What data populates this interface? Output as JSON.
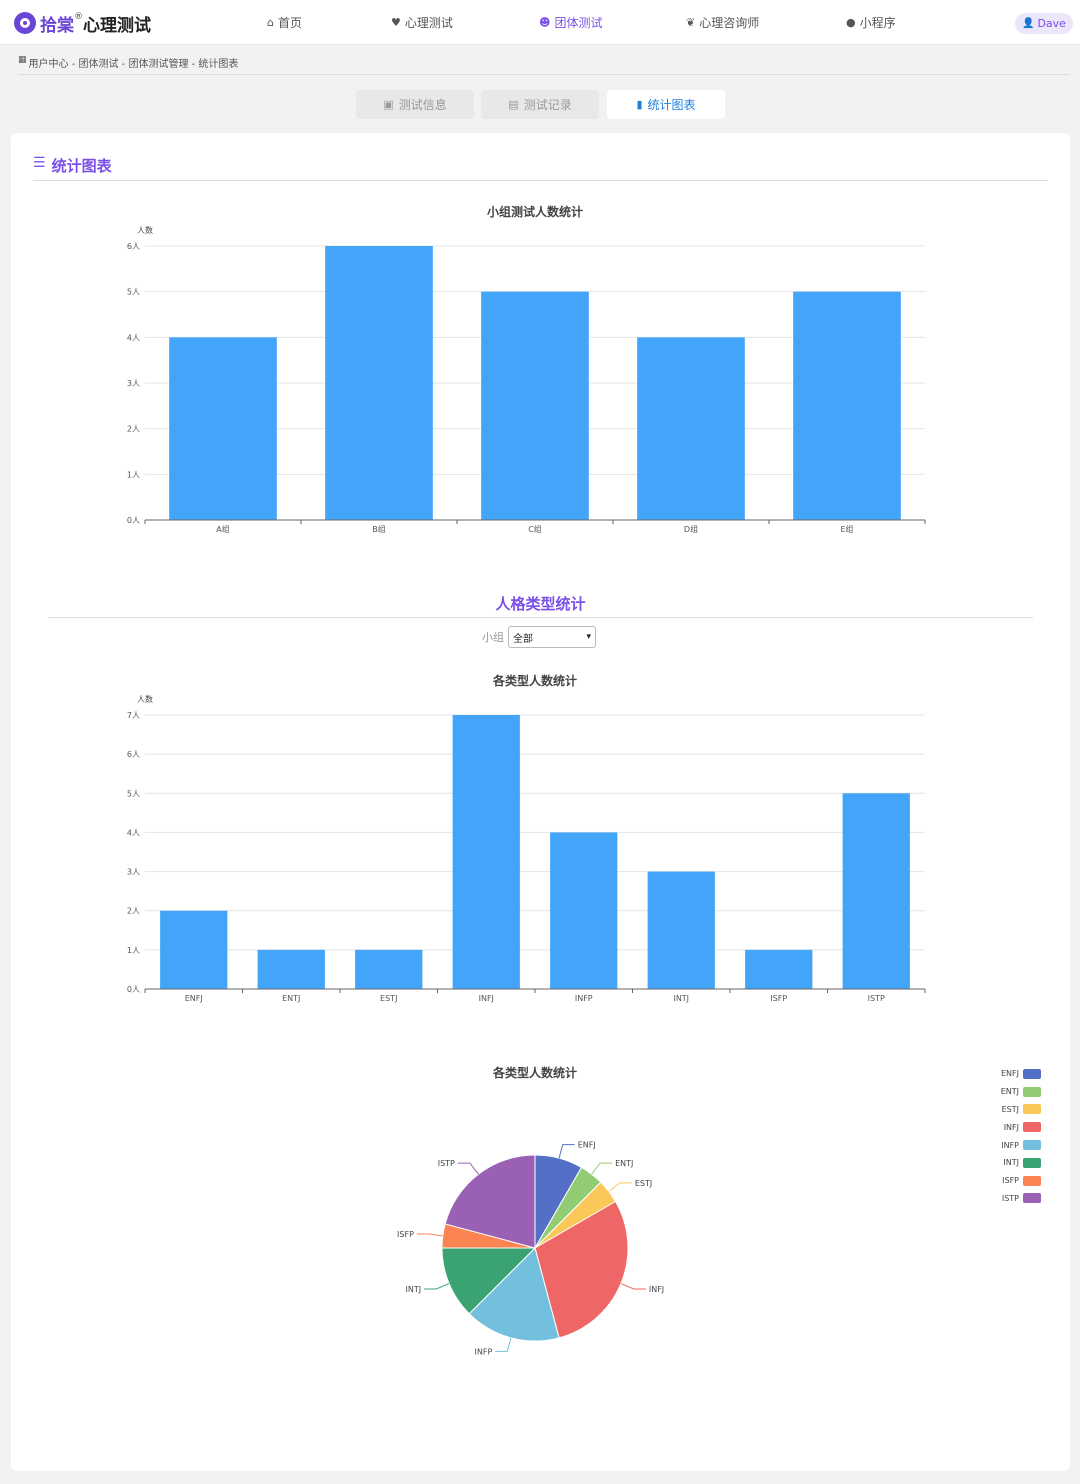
{
  "header": {
    "logo_brand": "拾棠",
    "logo_reg": "®",
    "logo_text": "心理测试",
    "nav": [
      {
        "label": "首页",
        "icon": "home-icon",
        "glyph": "⌂",
        "active": false
      },
      {
        "label": "心理测试",
        "icon": "heart-icon",
        "glyph": "♥",
        "active": false
      },
      {
        "label": "团体测试",
        "icon": "group-icon",
        "glyph": "☻",
        "active": true
      },
      {
        "label": "心理咨询师",
        "icon": "consultant-icon",
        "glyph": "❦",
        "active": false
      },
      {
        "label": "小程序",
        "icon": "mini-program-icon",
        "glyph": "●",
        "active": false
      }
    ],
    "user": "Dave"
  },
  "breadcrumb": "用户中心 - 团体测试 - 团体测试管理 - 统计图表",
  "tabs": [
    {
      "label": "测试信息",
      "icon": "info-icon",
      "glyph": "▣",
      "active": false
    },
    {
      "label": "测试记录",
      "icon": "record-icon",
      "glyph": "▤",
      "active": false
    },
    {
      "label": "统计图表",
      "icon": "bar-chart-icon",
      "glyph": "▮",
      "active": true
    }
  ],
  "section_title": "统计图表",
  "personality_section_title": "人格类型统计",
  "filter": {
    "label": "小组",
    "value": "全部"
  },
  "colors": {
    "accent": "#7b50e8",
    "bar": "#42a5fa",
    "tab_active": "#1f7fdc"
  },
  "chart_data": [
    {
      "type": "bar",
      "title": "小组测试人数统计",
      "ylabel": "人数",
      "categories": [
        "A组",
        "B组",
        "C组",
        "D组",
        "E组"
      ],
      "values": [
        4,
        6,
        5,
        4,
        5
      ],
      "ylim": [
        0,
        6
      ],
      "yticks": [
        "0人",
        "1人",
        "2人",
        "3人",
        "4人",
        "5人",
        "6人"
      ],
      "grid": true
    },
    {
      "type": "bar",
      "title": "各类型人数统计",
      "ylabel": "人数",
      "categories": [
        "ENFJ",
        "ENTJ",
        "ESTJ",
        "INFJ",
        "INFP",
        "INTJ",
        "ISFP",
        "ISTP"
      ],
      "values": [
        2,
        1,
        1,
        7,
        4,
        3,
        1,
        5
      ],
      "ylim": [
        0,
        7
      ],
      "yticks": [
        "0人",
        "1人",
        "2人",
        "3人",
        "4人",
        "5人",
        "6人",
        "7人"
      ],
      "grid": true
    },
    {
      "type": "pie",
      "title": "各类型人数统计",
      "legend": "top-right",
      "slices": [
        {
          "label": "ENFJ",
          "value": 2,
          "color": "#5470c6"
        },
        {
          "label": "ENTJ",
          "value": 1,
          "color": "#91cc75"
        },
        {
          "label": "ESTJ",
          "value": 1,
          "color": "#fac858"
        },
        {
          "label": "INFJ",
          "value": 7,
          "color": "#ee6666"
        },
        {
          "label": "INFP",
          "value": 4,
          "color": "#73c0de"
        },
        {
          "label": "INTJ",
          "value": 3,
          "color": "#3ba272"
        },
        {
          "label": "ISFP",
          "value": 1,
          "color": "#fc8452"
        },
        {
          "label": "ISTP",
          "value": 5,
          "color": "#9a60b4"
        }
      ]
    }
  ]
}
